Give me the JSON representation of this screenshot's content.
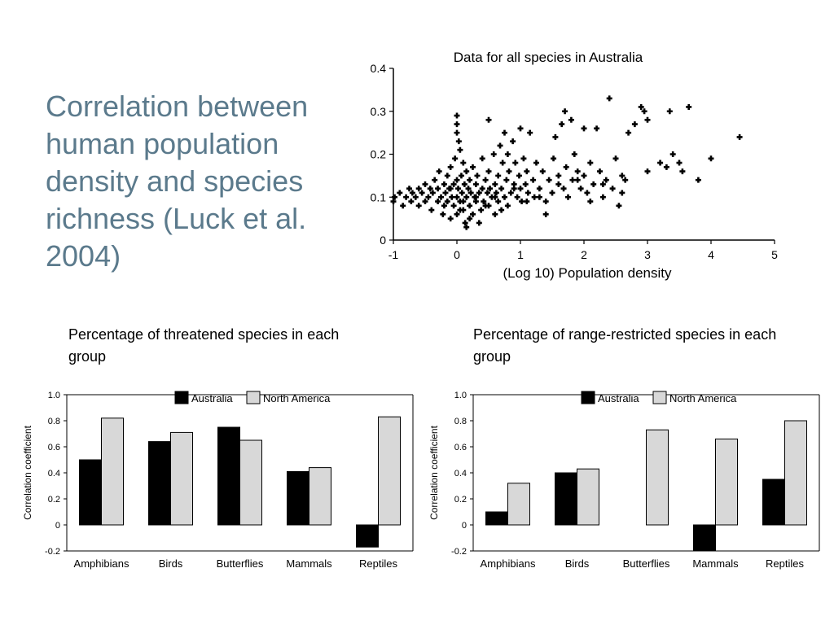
{
  "slide": {
    "title": "Correlation between human population density and species richness (Luck et al. 2004)"
  },
  "chart_data": [
    {
      "type": "scatter",
      "title": "Data for all species in Australia",
      "xlabel": "(Log 10) Population density",
      "ylabel": "",
      "xlim": [
        -1,
        5
      ],
      "ylim": [
        0,
        0.4
      ],
      "xticks": [
        "-1",
        "0",
        "1",
        "2",
        "3",
        "4",
        "5"
      ],
      "yticks": [
        "0",
        "0.1",
        "0.2",
        "0.3",
        "0.4"
      ],
      "marker_color": "#000000",
      "points": [
        [
          -1.0,
          0.09
        ],
        [
          -0.98,
          0.1
        ],
        [
          -0.9,
          0.11
        ],
        [
          -0.85,
          0.08
        ],
        [
          -0.8,
          0.1
        ],
        [
          -0.75,
          0.12
        ],
        [
          -0.72,
          0.09
        ],
        [
          -0.7,
          0.11
        ],
        [
          -0.65,
          0.1
        ],
        [
          -0.6,
          0.12
        ],
        [
          -0.6,
          0.08
        ],
        [
          -0.55,
          0.11
        ],
        [
          -0.5,
          0.09
        ],
        [
          -0.5,
          0.13
        ],
        [
          -0.45,
          0.1
        ],
        [
          -0.42,
          0.12
        ],
        [
          -0.4,
          0.07
        ],
        [
          -0.38,
          0.11
        ],
        [
          -0.35,
          0.14
        ],
        [
          -0.3,
          0.09
        ],
        [
          -0.3,
          0.12
        ],
        [
          -0.28,
          0.16
        ],
        [
          -0.25,
          0.1
        ],
        [
          -0.22,
          0.06
        ],
        [
          -0.2,
          0.13
        ],
        [
          -0.2,
          0.08
        ],
        [
          -0.18,
          0.11
        ],
        [
          -0.15,
          0.15
        ],
        [
          -0.15,
          0.09
        ],
        [
          -0.12,
          0.12
        ],
        [
          -0.1,
          0.05
        ],
        [
          -0.1,
          0.17
        ],
        [
          -0.08,
          0.1
        ],
        [
          -0.05,
          0.13
        ],
        [
          -0.05,
          0.08
        ],
        [
          -0.03,
          0.19
        ],
        [
          0.0,
          0.1
        ],
        [
          0.0,
          0.14
        ],
        [
          0.0,
          0.06
        ],
        [
          0.0,
          0.29
        ],
        [
          0.0,
          0.27
        ],
        [
          0.0,
          0.25
        ],
        [
          0.02,
          0.12
        ],
        [
          0.03,
          0.23
        ],
        [
          0.05,
          0.09
        ],
        [
          0.05,
          0.21
        ],
        [
          0.07,
          0.15
        ],
        [
          0.08,
          0.11
        ],
        [
          0.1,
          0.07
        ],
        [
          0.1,
          0.18
        ],
        [
          0.12,
          0.13
        ],
        [
          0.13,
          0.04
        ],
        [
          0.15,
          0.1
        ],
        [
          0.15,
          0.16
        ],
        [
          0.18,
          0.12
        ],
        [
          0.2,
          0.08
        ],
        [
          0.2,
          0.14
        ],
        [
          0.22,
          0.11
        ],
        [
          0.25,
          0.06
        ],
        [
          0.25,
          0.17
        ],
        [
          0.28,
          0.1
        ],
        [
          0.3,
          0.13
        ],
        [
          0.3,
          0.09
        ],
        [
          0.32,
          0.15
        ],
        [
          0.35,
          0.11
        ],
        [
          0.38,
          0.07
        ],
        [
          0.4,
          0.12
        ],
        [
          0.4,
          0.19
        ],
        [
          0.42,
          0.09
        ],
        [
          0.45,
          0.14
        ],
        [
          0.48,
          0.11
        ],
        [
          0.5,
          0.08
        ],
        [
          0.5,
          0.16
        ],
        [
          0.5,
          0.28
        ],
        [
          0.52,
          0.12
        ],
        [
          0.55,
          0.1
        ],
        [
          0.58,
          0.2
        ],
        [
          0.6,
          0.13
        ],
        [
          0.6,
          0.06
        ],
        [
          0.62,
          0.11
        ],
        [
          0.65,
          0.15
        ],
        [
          0.65,
          0.09
        ],
        [
          0.68,
          0.22
        ],
        [
          0.7,
          0.12
        ],
        [
          0.72,
          0.18
        ],
        [
          0.75,
          0.1
        ],
        [
          0.75,
          0.25
        ],
        [
          0.78,
          0.14
        ],
        [
          0.8,
          0.08
        ],
        [
          0.8,
          0.2
        ],
        [
          0.82,
          0.16
        ],
        [
          0.85,
          0.11
        ],
        [
          0.88,
          0.23
        ],
        [
          0.9,
          0.13
        ],
        [
          0.92,
          0.18
        ],
        [
          0.95,
          0.1
        ],
        [
          0.98,
          0.15
        ],
        [
          1.0,
          0.12
        ],
        [
          1.0,
          0.26
        ],
        [
          1.02,
          0.09
        ],
        [
          1.05,
          0.19
        ],
        [
          1.08,
          0.13
        ],
        [
          1.1,
          0.16
        ],
        [
          1.12,
          0.11
        ],
        [
          1.15,
          0.25
        ],
        [
          1.2,
          0.14
        ],
        [
          1.22,
          0.1
        ],
        [
          1.25,
          0.18
        ],
        [
          1.3,
          0.12
        ],
        [
          1.35,
          0.16
        ],
        [
          1.4,
          0.09
        ],
        [
          1.45,
          0.14
        ],
        [
          1.5,
          0.11
        ],
        [
          1.52,
          0.19
        ],
        [
          1.55,
          0.24
        ],
        [
          1.6,
          0.15
        ],
        [
          1.65,
          0.27
        ],
        [
          1.68,
          0.12
        ],
        [
          1.7,
          0.3
        ],
        [
          1.72,
          0.17
        ],
        [
          1.75,
          0.1
        ],
        [
          1.8,
          0.28
        ],
        [
          1.82,
          0.14
        ],
        [
          1.85,
          0.2
        ],
        [
          1.9,
          0.16
        ],
        [
          1.95,
          0.12
        ],
        [
          2.0,
          0.26
        ],
        [
          2.0,
          0.15
        ],
        [
          2.05,
          0.11
        ],
        [
          2.1,
          0.18
        ],
        [
          2.15,
          0.13
        ],
        [
          2.2,
          0.26
        ],
        [
          2.25,
          0.16
        ],
        [
          2.3,
          0.1
        ],
        [
          2.35,
          0.14
        ],
        [
          2.4,
          0.33
        ],
        [
          2.45,
          0.12
        ],
        [
          2.5,
          0.19
        ],
        [
          2.55,
          0.08
        ],
        [
          2.6,
          0.15
        ],
        [
          2.65,
          0.14
        ],
        [
          2.7,
          0.25
        ],
        [
          2.8,
          0.27
        ],
        [
          2.9,
          0.31
        ],
        [
          2.95,
          0.3
        ],
        [
          3.0,
          0.28
        ],
        [
          3.0,
          0.16
        ],
        [
          3.2,
          0.18
        ],
        [
          3.3,
          0.17
        ],
        [
          3.35,
          0.3
        ],
        [
          3.4,
          0.2
        ],
        [
          3.5,
          0.18
        ],
        [
          3.55,
          0.16
        ],
        [
          3.65,
          0.31
        ],
        [
          3.8,
          0.14
        ],
        [
          4.0,
          0.19
        ],
        [
          4.45,
          0.24
        ],
        [
          0.1,
          0.09
        ],
        [
          0.2,
          0.05
        ],
        [
          0.35,
          0.04
        ],
        [
          -0.1,
          0.12
        ],
        [
          0.05,
          0.07
        ],
        [
          0.3,
          0.1
        ],
        [
          0.45,
          0.08
        ],
        [
          0.6,
          0.1
        ],
        [
          0.7,
          0.07
        ],
        [
          0.9,
          0.12
        ],
        [
          1.1,
          0.09
        ],
        [
          1.3,
          0.1
        ],
        [
          1.6,
          0.13
        ],
        [
          1.9,
          0.14
        ],
        [
          2.3,
          0.13
        ],
        [
          2.6,
          0.11
        ],
        [
          2.1,
          0.09
        ],
        [
          1.4,
          0.06
        ],
        [
          0.15,
          0.03
        ]
      ]
    },
    {
      "type": "bar",
      "panel_title": "Percentage of threatened species in each group",
      "ylabel": "Correlation coefficient",
      "xlabel": "",
      "ylim": [
        -0.2,
        1.0
      ],
      "yticks": [
        "-0.2",
        "0",
        "0.2",
        "0.4",
        "0.6",
        "0.8",
        "1.0"
      ],
      "categories": [
        "Amphibians",
        "Birds",
        "Butterflies",
        "Mammals",
        "Reptiles"
      ],
      "legend_position": "top-right",
      "series": [
        {
          "name": "Australia",
          "color": "#000000",
          "values": [
            0.5,
            0.64,
            0.75,
            0.41,
            -0.17
          ]
        },
        {
          "name": "North America",
          "color": "#d8d8d8",
          "values": [
            0.82,
            0.71,
            0.65,
            0.44,
            0.83
          ]
        }
      ]
    },
    {
      "type": "bar",
      "panel_title": "Percentage of range-restricted species in each group",
      "ylabel": "Correlation coefficient",
      "xlabel": "",
      "ylim": [
        -0.2,
        1.0
      ],
      "yticks": [
        "-0.2",
        "0",
        "0.2",
        "0.4",
        "0.6",
        "0.8",
        "1.0"
      ],
      "categories": [
        "Amphibians",
        "Birds",
        "Butterflies",
        "Mammals",
        "Reptiles"
      ],
      "legend_position": "top-right",
      "series": [
        {
          "name": "Australia",
          "color": "#000000",
          "values": [
            0.1,
            0.4,
            null,
            -0.2,
            0.35
          ]
        },
        {
          "name": "North America",
          "color": "#d8d8d8",
          "values": [
            0.32,
            0.43,
            0.73,
            0.66,
            0.8
          ]
        }
      ]
    }
  ]
}
